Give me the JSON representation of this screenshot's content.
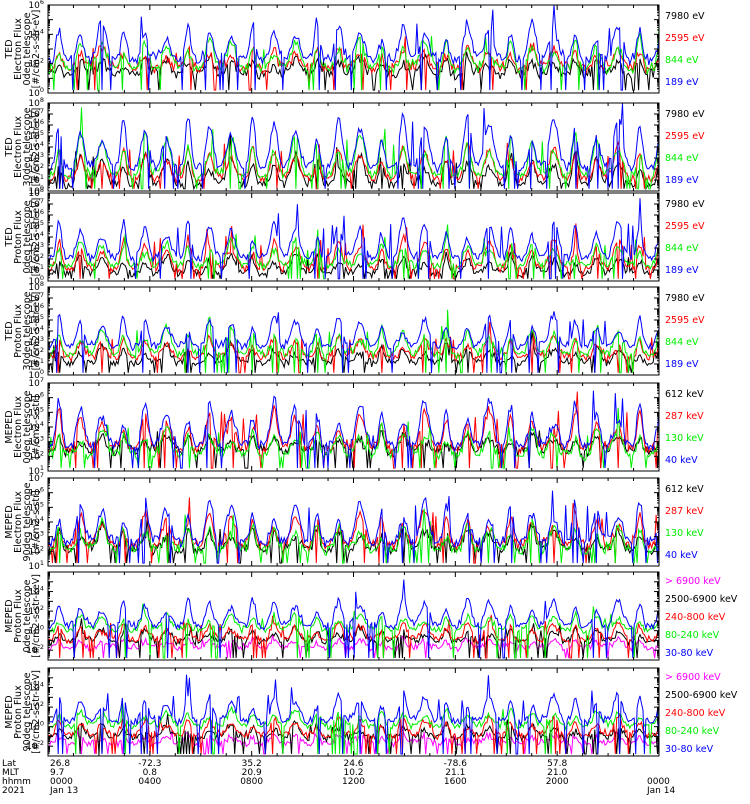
{
  "colors": {
    "black": "#000000",
    "red": "#ff0000",
    "green": "#00ee00",
    "blue": "#0000ff",
    "magenta": "#ff00ff"
  },
  "x_axis": {
    "row_labels": [
      "Lat",
      "MLT",
      "hhmm",
      "2021"
    ],
    "ticks": [
      {
        "lat": "26.8",
        "mlt": "9.7",
        "hhmm": "0000",
        "date": "Jan 13"
      },
      {
        "lat": "-72.3",
        "mlt": "0.8",
        "hhmm": "0400",
        "date": ""
      },
      {
        "lat": "35.2",
        "mlt": "20.9",
        "hhmm": "0800",
        "date": ""
      },
      {
        "lat": "24.6",
        "mlt": "10.2",
        "hhmm": "1200",
        "date": ""
      },
      {
        "lat": "-78.6",
        "mlt": "21.1",
        "hhmm": "1600",
        "date": ""
      },
      {
        "lat": "57.8",
        "mlt": "21.0",
        "hhmm": "2000",
        "date": ""
      },
      {
        "lat": "",
        "mlt": "",
        "hhmm": "0000",
        "date": "Jan 14"
      }
    ]
  },
  "chart_data": [
    {
      "type": "line",
      "log_y": true,
      "ylabel": [
        "TED",
        "Electron Flux",
        "0deg telescope",
        "[#/cm2-s-str-eV]"
      ],
      "ylim_exp": [
        0,
        6
      ],
      "y_tick_exps": [
        0,
        2,
        4,
        6
      ],
      "series": [
        {
          "name": "7980 eV",
          "color": "black",
          "base_exp": 1.2,
          "peak_exp": 2.5
        },
        {
          "name": "2595 eV",
          "color": "red",
          "base_exp": 1.6,
          "peak_exp": 3.2
        },
        {
          "name": "844 eV",
          "color": "green",
          "base_exp": 1.6,
          "peak_exp": 3.8
        },
        {
          "name": "189 eV",
          "color": "blue",
          "base_exp": 2.2,
          "peak_exp": 5.0
        }
      ]
    },
    {
      "type": "line",
      "log_y": true,
      "ylabel": [
        "TED",
        "Electron Flux",
        "30deg telescope",
        "[#/cm2-s-str-eV]"
      ],
      "ylim_exp": [
        0,
        8
      ],
      "y_tick_exps": [
        0,
        1,
        2,
        3,
        4,
        5,
        6,
        7,
        8
      ],
      "series": [
        {
          "name": "7980 eV",
          "color": "black",
          "base_exp": 0.5,
          "peak_exp": 3.5
        },
        {
          "name": "2595 eV",
          "color": "red",
          "base_exp": 1.0,
          "peak_exp": 4.3
        },
        {
          "name": "844 eV",
          "color": "green",
          "base_exp": 1.3,
          "peak_exp": 5.5
        },
        {
          "name": "189 eV",
          "color": "blue",
          "base_exp": 2.0,
          "peak_exp": 7.3
        }
      ]
    },
    {
      "type": "line",
      "log_y": true,
      "ylabel": [
        "TED",
        "Proton Flux",
        "0deg telescope",
        "[#/cm2-s-str-eV]"
      ],
      "ylim_exp": [
        0,
        8
      ],
      "y_tick_exps": [
        0,
        1,
        2,
        3,
        4,
        5,
        6,
        7,
        8
      ],
      "series": [
        {
          "name": "7980 eV",
          "color": "black",
          "base_exp": 0.6,
          "peak_exp": 2.5
        },
        {
          "name": "2595 eV",
          "color": "red",
          "base_exp": 1.0,
          "peak_exp": 4.0
        },
        {
          "name": "844 eV",
          "color": "green",
          "base_exp": 1.3,
          "peak_exp": 3.8
        },
        {
          "name": "189 eV",
          "color": "blue",
          "base_exp": 2.0,
          "peak_exp": 5.8
        }
      ]
    },
    {
      "type": "line",
      "log_y": true,
      "ylabel": [
        "TED",
        "Proton Flux",
        "30deg telescope",
        "[#/cm2-s-str-eV]"
      ],
      "ylim_exp": [
        0,
        8
      ],
      "y_tick_exps": [
        0,
        1,
        2,
        3,
        4,
        5,
        6,
        7,
        8
      ],
      "series": [
        {
          "name": "7980 eV",
          "color": "black",
          "base_exp": 1.0,
          "peak_exp": 2.8
        },
        {
          "name": "2595 eV",
          "color": "red",
          "base_exp": 1.5,
          "peak_exp": 3.5
        },
        {
          "name": "844 eV",
          "color": "green",
          "base_exp": 1.8,
          "peak_exp": 4.5
        },
        {
          "name": "189 eV",
          "color": "blue",
          "base_exp": 2.5,
          "peak_exp": 5.5
        }
      ]
    },
    {
      "type": "line",
      "log_y": true,
      "ylabel": [
        "MEPED",
        "Electron Flux",
        "0deg telescope",
        "[#/cm2-s-str]"
      ],
      "ylim_exp": [
        1,
        7
      ],
      "y_tick_exps": [
        1,
        2,
        3,
        4,
        5,
        6,
        7
      ],
      "series": [
        {
          "name": "612 keV",
          "color": "black",
          "base_exp": 2.3,
          "peak_exp": 3.5
        },
        {
          "name": "287 keV",
          "color": "red",
          "base_exp": 2.4,
          "peak_exp": 5.2
        },
        {
          "name": "130 keV",
          "color": "green",
          "base_exp": 2.0,
          "peak_exp": 4.0
        },
        {
          "name": "40 keV",
          "color": "blue",
          "base_exp": 2.6,
          "peak_exp": 6.0
        }
      ]
    },
    {
      "type": "line",
      "log_y": true,
      "ylabel": [
        "MEPED",
        "Electron Flux",
        "90deg telescope",
        "[#/cm2-s-str]"
      ],
      "ylim_exp": [
        1,
        7
      ],
      "y_tick_exps": [
        1,
        2,
        3,
        4,
        5,
        6,
        7
      ],
      "series": [
        {
          "name": "612 keV",
          "color": "black",
          "base_exp": 2.0,
          "peak_exp": 3.8
        },
        {
          "name": "287 keV",
          "color": "red",
          "base_exp": 2.3,
          "peak_exp": 4.8
        },
        {
          "name": "130 keV",
          "color": "green",
          "base_exp": 2.0,
          "peak_exp": 4.0
        },
        {
          "name": "40 keV",
          "color": "blue",
          "base_exp": 2.5,
          "peak_exp": 5.6
        }
      ]
    },
    {
      "type": "line",
      "log_y": true,
      "ylabel": [
        "MEPED",
        "Proton Flux",
        "0deg telescope",
        "[#/cm2-s-str-keV]"
      ],
      "ylim_exp": [
        -3,
        6
      ],
      "y_tick_exps": [
        -2,
        0,
        2,
        4
      ],
      "series": [
        {
          "name": "> 6900 keV",
          "color": "magenta",
          "base_exp": -1.8,
          "peak_exp": -0.8
        },
        {
          "name": "2500-6900 keV",
          "color": "black",
          "base_exp": -1.2,
          "peak_exp": 0.3
        },
        {
          "name": "240-800 keV",
          "color": "red",
          "base_exp": -1.0,
          "peak_exp": 1.0
        },
        {
          "name": "80-240 keV",
          "color": "green",
          "base_exp": 0.0,
          "peak_exp": 1.8
        },
        {
          "name": "30-80 keV",
          "color": "blue",
          "base_exp": 0.4,
          "peak_exp": 3.5
        }
      ]
    },
    {
      "type": "line",
      "log_y": true,
      "ylabel": [
        "MEPED",
        "Proton Flux",
        "90deg telescope",
        "[#/cm2-s-str-keV]"
      ],
      "ylim_exp": [
        -3,
        6
      ],
      "y_tick_exps": [
        -2,
        0,
        2,
        4
      ],
      "series": [
        {
          "name": "> 6900 keV",
          "color": "magenta",
          "base_exp": -1.8,
          "peak_exp": -0.8
        },
        {
          "name": "2500-6900 keV",
          "color": "black",
          "base_exp": -1.2,
          "peak_exp": 0.3
        },
        {
          "name": "240-800 keV",
          "color": "red",
          "base_exp": -1.0,
          "peak_exp": 1.0
        },
        {
          "name": "80-240 keV",
          "color": "green",
          "base_exp": 0.0,
          "peak_exp": 1.8
        },
        {
          "name": "30-80 keV",
          "color": "blue",
          "base_exp": 0.4,
          "peak_exp": 3.5
        }
      ]
    }
  ]
}
